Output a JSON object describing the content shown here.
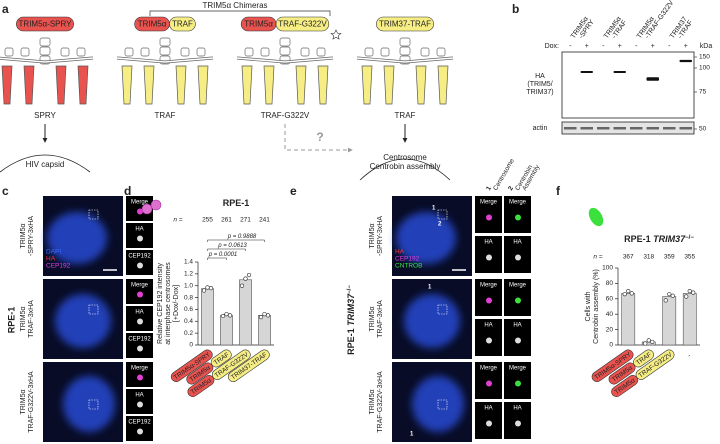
{
  "panel_letters": [
    "a",
    "b",
    "c",
    "d",
    "e",
    "f"
  ],
  "panel_a": {
    "chimeras": "TRIM5α Chimeras",
    "constructs": [
      [
        "TRIM5α-SPRY"
      ],
      [
        "TRIM5α",
        "TRAF"
      ],
      [
        "TRIM5α",
        "TRAF-G322V"
      ],
      [
        "TRIM37-TRAF"
      ]
    ],
    "construct_colors": [
      [
        "#e8534f"
      ],
      [
        "#e8534f",
        "#f6ee84"
      ],
      [
        "#e8534f",
        "#f6ee84"
      ],
      [
        "#f6ee84"
      ]
    ],
    "domains": [
      "SPRY",
      "TRAF",
      "TRAF-G322V",
      "TRAF"
    ],
    "target1": "HIV capsid",
    "target2": [
      "Centrosome",
      "Centrobin assembly"
    ],
    "question": "?"
  },
  "panel_b": {
    "lanes": [
      [
        "TRIM5α",
        "-SPRY"
      ],
      [
        "TRIM5α",
        "-TRAF"
      ],
      [
        "TRIM5α",
        "-TRAF-G322V"
      ],
      [
        "TRIM37",
        "-TRAF"
      ]
    ],
    "dox": "Dox:",
    "signs": [
      "-",
      "+"
    ],
    "kda": "kDa",
    "markers": [
      150,
      100,
      75,
      50
    ],
    "ha_label": [
      "HA",
      "(TRIM5/",
      "TRIM37)"
    ],
    "actin": "actin"
  },
  "panel_c": {
    "cell_line": "RPE-1",
    "rows": [
      [
        "TRIM5α",
        "-SPRY-3xHA"
      ],
      [
        "TRIM5α",
        "TRAF-3xHA"
      ],
      [
        "TRIM5α",
        "TRAF-G322V-3xHA"
      ]
    ],
    "channels": [
      "DAPI",
      "HA",
      "CEP192"
    ],
    "insets": [
      "Merge",
      "HA",
      "CEP192"
    ]
  },
  "panel_e": {
    "cell_line": [
      "RPE-1 ",
      "TRIM37",
      "−/−"
    ],
    "rows": [
      [
        "TRIM5α",
        "-SPRY-3xHA"
      ],
      [
        "TRIM5α",
        "TRAF-3xHA"
      ],
      [
        "TRIM5α",
        "TRAF-G322V-3xHA"
      ]
    ],
    "channels": [
      "HA",
      "CEP192",
      "CNTROB"
    ],
    "legend": [
      [
        "1",
        "Centrosome"
      ],
      [
        "2",
        "Centrobin",
        "Assembly"
      ]
    ],
    "spots": [
      "1",
      "2"
    ],
    "insets": [
      "Merge",
      "HA"
    ]
  },
  "chart_data": [
    {
      "type": "bar",
      "title": [
        "RPE-1"
      ],
      "ylabel": [
        "Relative CEP192 intensity",
        "at interphase centrosomes",
        "[+Dox/-Dox]"
      ],
      "categories": [
        [
          "TRIM5α-SPRY"
        ],
        [
          "TRIM5α",
          "TRAF"
        ],
        [
          "TRIM5α",
          "TRAF-G322V"
        ],
        [
          "TRIM37-TRAF"
        ]
      ],
      "category_colors": [
        [
          "#e8534f"
        ],
        [
          "#e8534f",
          "#f6ee84"
        ],
        [
          "#e8534f",
          "#f6ee84"
        ],
        [
          "#f6ee84"
        ]
      ],
      "values": [
        0.95,
        0.5,
        1.1,
        0.5
      ],
      "points": [
        [
          0.92,
          0.97,
          0.96
        ],
        [
          0.49,
          0.52,
          0.5
        ],
        [
          1.0,
          1.12,
          1.18
        ],
        [
          0.47,
          0.52,
          0.5
        ]
      ],
      "color": "#d6d6d6",
      "ylim": [
        0,
        1.4
      ],
      "yticks": [
        0,
        0.2,
        0.4,
        0.6,
        0.8,
        {
          "value": 1,
          "label": "1.0"
        },
        1.2,
        1.4
      ],
      "n_label": "n =",
      "n": [
        255,
        261,
        271,
        241
      ],
      "comparisons": [
        "p = 0.0001",
        "p = 0.0613",
        "p = 0.9888"
      ]
    },
    {
      "type": "bar",
      "title": [
        "RPE-1 ",
        "TRIM37",
        "−/−"
      ],
      "ylabel": [
        "Cells with",
        "Centrobin assembly (%)"
      ],
      "categories": [
        [
          "TRIM5α-SPRY"
        ],
        [
          "TRIM5α",
          "TRAF"
        ],
        [
          "TRIM5α",
          "TRAF-G322V"
        ],
        [
          "-"
        ]
      ],
      "category_colors": [
        [
          "#e8534f"
        ],
        [
          "#e8534f",
          "#f6ee84"
        ],
        [
          "#e8534f",
          "#f6ee84"
        ],
        []
      ],
      "values": [
        67,
        4,
        63,
        67
      ],
      "points": [
        [
          66,
          70,
          67
        ],
        [
          2,
          6,
          4
        ],
        [
          58,
          66,
          64
        ],
        [
          63,
          70,
          68
        ]
      ],
      "color": "#d6d6d6",
      "ylim": [
        0,
        100
      ],
      "yticks": [
        0,
        20,
        40,
        60,
        80,
        100
      ],
      "n_label": "n =",
      "n": [
        367,
        318,
        359,
        355
      ]
    }
  ]
}
